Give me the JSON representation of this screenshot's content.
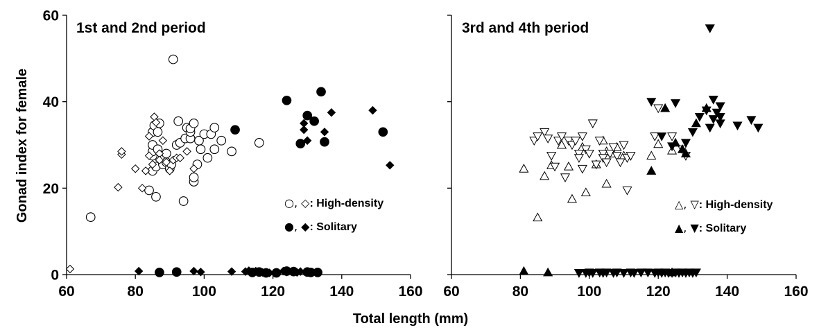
{
  "figure": {
    "ylabel": "Gonad index for female",
    "xlabel": "Total length (mm)"
  },
  "chart_data": [
    {
      "type": "scatter",
      "title": "1st and 2nd period",
      "xlim": [
        60,
        160
      ],
      "ylim": [
        0,
        60
      ],
      "xticks": [
        "60",
        "80",
        "100",
        "120",
        "140",
        "160"
      ],
      "yticks": [
        "0",
        "20",
        "40",
        "60"
      ],
      "legend": [
        {
          "symbols": "○, ◇",
          "label": ": High-density"
        },
        {
          "symbols": "●, ◆",
          "label": ": Solitary"
        }
      ],
      "series": [
        {
          "name": "High-density circle",
          "marker": "circle-open",
          "points": [
            [
              67,
              13.3
            ],
            [
              84,
              19.5
            ],
            [
              85,
              24
            ],
            [
              85,
              27.5
            ],
            [
              85,
              28.5
            ],
            [
              85,
              30
            ],
            [
              85,
              33
            ],
            [
              85.5,
              34.5
            ],
            [
              86,
              18
            ],
            [
              86,
              25
            ],
            [
              86.5,
              29
            ],
            [
              86.5,
              33
            ],
            [
              87,
              35
            ],
            [
              88,
              25.5
            ],
            [
              89,
              26
            ],
            [
              89,
              28
            ],
            [
              90,
              24.5
            ],
            [
              90.5,
              25.5
            ],
            [
              91,
              49.8
            ],
            [
              92,
              30
            ],
            [
              92.5,
              35.5
            ],
            [
              93,
              30.5
            ],
            [
              94,
              17
            ],
            [
              94.5,
              31.5
            ],
            [
              95,
              34
            ],
            [
              96,
              31.5
            ],
            [
              96,
              33
            ],
            [
              96,
              33.8
            ],
            [
              97,
              21.5
            ],
            [
              97,
              22.5
            ],
            [
              97,
              35
            ],
            [
              98,
              25.5
            ],
            [
              98.5,
              31
            ],
            [
              99,
              29
            ],
            [
              100,
              32.5
            ],
            [
              101,
              27
            ],
            [
              102,
              32.5
            ],
            [
              103,
              29
            ],
            [
              103,
              34
            ],
            [
              105,
              31
            ],
            [
              108,
              28.5
            ],
            [
              116,
              30.5
            ]
          ]
        },
        {
          "name": "High-density diamond",
          "marker": "diamond-open",
          "points": [
            [
              61,
              1.3
            ],
            [
              75,
              20.2
            ],
            [
              76,
              27.8
            ],
            [
              76,
              28.5
            ],
            [
              80,
              24.5
            ],
            [
              82,
              20
            ],
            [
              83,
              24
            ],
            [
              84,
              32
            ],
            [
              84,
              27.5
            ],
            [
              85,
              25.5
            ],
            [
              85.5,
              36.5
            ],
            [
              86,
              35.2
            ],
            [
              87,
              28
            ],
            [
              87,
              26.5
            ],
            [
              88,
              31
            ],
            [
              89,
              26
            ],
            [
              90,
              24
            ],
            [
              91,
              26.5
            ],
            [
              92,
              27
            ],
            [
              93,
              27
            ],
            [
              95,
              28.5
            ],
            [
              97,
              24.5
            ]
          ]
        },
        {
          "name": "Solitary circle",
          "marker": "circle-filled",
          "points": [
            [
              87,
              0.5
            ],
            [
              92,
              0.6
            ],
            [
              109,
              33.5
            ],
            [
              114,
              0.5
            ],
            [
              116,
              0.6
            ],
            [
              118,
              0.4
            ],
            [
              121,
              0.4
            ],
            [
              124,
              40.3
            ],
            [
              124,
              0.8
            ],
            [
              126,
              0.7
            ],
            [
              128,
              30.3
            ],
            [
              130,
              36.8
            ],
            [
              130,
              0.6
            ],
            [
              131,
              0.5
            ],
            [
              132,
              35.5
            ],
            [
              133,
              0.5
            ],
            [
              134,
              42.3
            ],
            [
              135,
              30.7
            ],
            [
              152,
              33
            ]
          ]
        },
        {
          "name": "Solitary diamond",
          "marker": "diamond-filled",
          "points": [
            [
              81,
              0.8
            ],
            [
              97,
              0.8
            ],
            [
              99,
              0.6
            ],
            [
              108,
              0.7
            ],
            [
              112,
              0.7
            ],
            [
              113,
              0.9
            ],
            [
              115,
              0.8
            ],
            [
              117,
              0.5
            ],
            [
              119,
              0.4
            ],
            [
              123,
              0.8
            ],
            [
              124,
              0.6
            ],
            [
              127,
              0.5
            ],
            [
              128,
              0.7
            ],
            [
              129,
              33.5
            ],
            [
              129,
              35
            ],
            [
              130,
              31
            ],
            [
              131,
              0.6
            ],
            [
              135,
              33
            ],
            [
              137,
              37.5
            ],
            [
              149,
              38
            ],
            [
              154,
              25.3
            ]
          ]
        }
      ]
    },
    {
      "type": "scatter",
      "title": "3rd and 4th period",
      "xlim": [
        60,
        160
      ],
      "ylim": [
        0,
        60
      ],
      "xticks": [
        "60",
        "80",
        "100",
        "120",
        "140",
        "160"
      ],
      "yticks": [],
      "legend": [
        {
          "symbols": "△, ▽",
          "label": ": High-density"
        },
        {
          "symbols": "▲, ▼",
          "label": ": Solitary"
        }
      ],
      "series": [
        {
          "name": "High-density up-triangle",
          "marker": "triangle-up-open",
          "points": [
            [
              81,
              24.5
            ],
            [
              85,
              13.2
            ],
            [
              87,
              22.8
            ],
            [
              89,
              25.3
            ],
            [
              92,
              30
            ],
            [
              94,
              25
            ],
            [
              95,
              17.5
            ],
            [
              98,
              29.5
            ],
            [
              99,
              19
            ],
            [
              102,
              25.5
            ],
            [
              104,
              31
            ],
            [
              105,
              21
            ],
            [
              105,
              28.5
            ],
            [
              107,
              28
            ],
            [
              108,
              29.5
            ],
            [
              110,
              27.5
            ],
            [
              118,
              27.5
            ],
            [
              120,
              30.2
            ],
            [
              124,
              28.7
            ]
          ]
        },
        {
          "name": "High-density down-triangle",
          "marker": "triangle-down-open",
          "points": [
            [
              84,
              31
            ],
            [
              85,
              32
            ],
            [
              87,
              33
            ],
            [
              88,
              31.5
            ],
            [
              89,
              27.5
            ],
            [
              90,
              25
            ],
            [
              91,
              31
            ],
            [
              92,
              32
            ],
            [
              93,
              22.5
            ],
            [
              94,
              31
            ],
            [
              95,
              30
            ],
            [
              96,
              31
            ],
            [
              97,
              28
            ],
            [
              97,
              27
            ],
            [
              98,
              32
            ],
            [
              98,
              24.5
            ],
            [
              99,
              29
            ],
            [
              100,
              28
            ],
            [
              101,
              35
            ],
            [
              102,
              25.5
            ],
            [
              103,
              31
            ],
            [
              104,
              28
            ],
            [
              104,
              27
            ],
            [
              105,
              26
            ],
            [
              106,
              28
            ],
            [
              107,
              29.5
            ],
            [
              108,
              27.5
            ],
            [
              109,
              26
            ],
            [
              110,
              30
            ],
            [
              111,
              27
            ],
            [
              111,
              19.5
            ],
            [
              112,
              27.5
            ],
            [
              119,
              32
            ],
            [
              120,
              38.5
            ],
            [
              124,
              32
            ],
            [
              127,
              29
            ],
            [
              128,
              27.5
            ]
          ]
        },
        {
          "name": "Solitary up-triangle",
          "marker": "triangle-up-filled",
          "points": [
            [
              81,
              0.8
            ],
            [
              88,
              0.5
            ],
            [
              118,
              24
            ],
            [
              122,
              38.5
            ],
            [
              124,
              0.5
            ],
            [
              125,
              30.5
            ],
            [
              127,
              29
            ],
            [
              128,
              28
            ],
            [
              131,
              35
            ],
            [
              134,
              38.5
            ]
          ]
        },
        {
          "name": "Solitary down-triangle",
          "marker": "triangle-down-filled",
          "points": [
            [
              97,
              0.4
            ],
            [
              99,
              0.4
            ],
            [
              100,
              0.5
            ],
            [
              101,
              0.4
            ],
            [
              103,
              0.5
            ],
            [
              104,
              0.4
            ],
            [
              105,
              0.5
            ],
            [
              107,
              0.4
            ],
            [
              108,
              0.5
            ],
            [
              110,
              0.4
            ],
            [
              112,
              0.5
            ],
            [
              113,
              0.4
            ],
            [
              115,
              0.5
            ],
            [
              117,
              0.5
            ],
            [
              119,
              0.4
            ],
            [
              120,
              0.5
            ],
            [
              121,
              0.4
            ],
            [
              122,
              0.5
            ],
            [
              123,
              0.4
            ],
            [
              124,
              0.4
            ],
            [
              125,
              0.5
            ],
            [
              126,
              0.4
            ],
            [
              127,
              0.5
            ],
            [
              128,
              0.4
            ],
            [
              129,
              0.5
            ],
            [
              130,
              0.4
            ],
            [
              131,
              0.5
            ],
            [
              118,
              40
            ],
            [
              121,
              32
            ],
            [
              124,
              29.7
            ],
            [
              125,
              39.7
            ],
            [
              128,
              30.5
            ],
            [
              130,
              33
            ],
            [
              132,
              36.5
            ],
            [
              134,
              38
            ],
            [
              135,
              57
            ],
            [
              135,
              34
            ],
            [
              136,
              40.5
            ],
            [
              136,
              36
            ],
            [
              137,
              37.5
            ],
            [
              138,
              39
            ],
            [
              138,
              35
            ],
            [
              138,
              36.5
            ],
            [
              143,
              34.5
            ],
            [
              147,
              35.8
            ],
            [
              149,
              34
            ]
          ]
        }
      ]
    }
  ]
}
